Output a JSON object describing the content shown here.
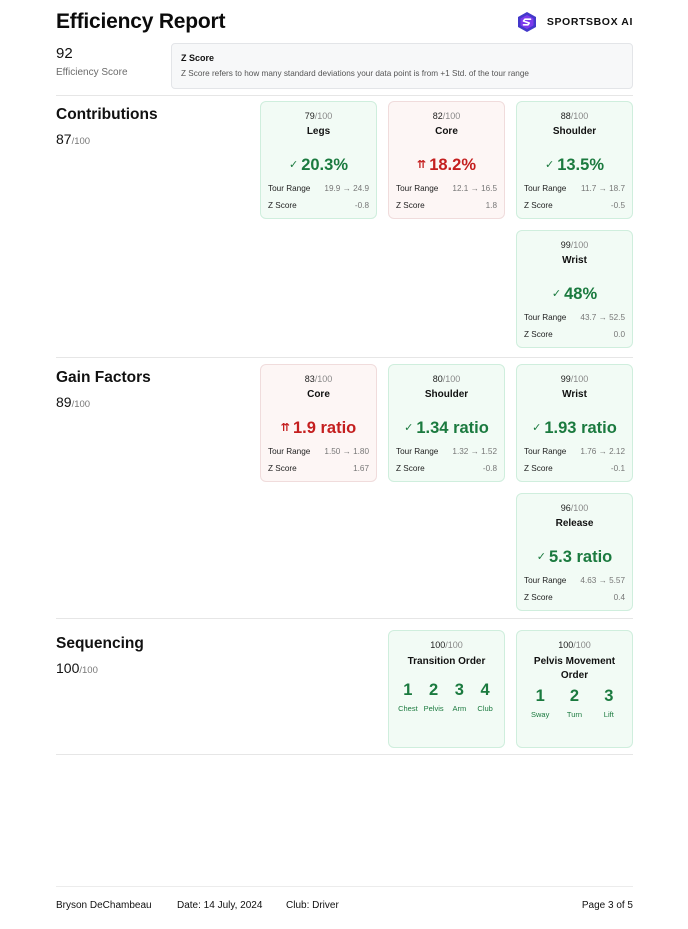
{
  "header": {
    "title": "Efficiency Report",
    "brand": "SPORTSBOX AI",
    "brand_icon": "sportsbox-logo-icon"
  },
  "summary": {
    "efficiency_score": "92",
    "efficiency_label": "Efficiency Score",
    "zscore_title": "Z Score",
    "zscore_desc": "Z Score refers to how many standard deviations your data point is from +1 Std. of the tour range"
  },
  "colors": {
    "good": "#1b7a3f",
    "bad": "#c41f1f",
    "good_bg": "#f2fbf5",
    "bad_bg": "#fdf6f5"
  },
  "contributions": {
    "title": "Contributions",
    "score": "87",
    "den": "/100",
    "cards": [
      {
        "score": "79",
        "den": "/100",
        "name": "Legs",
        "mark": "✓",
        "value": "20.3%",
        "status": "good",
        "range_label": "Tour Range",
        "range": "19.9 → 24.9",
        "z_label": "Z Score",
        "z": "-0.8"
      },
      {
        "score": "82",
        "den": "/100",
        "name": "Core",
        "mark": "⇈",
        "value": "18.2%",
        "status": "bad",
        "range_label": "Tour Range",
        "range": "12.1 → 16.5",
        "z_label": "Z Score",
        "z": "1.8"
      },
      {
        "score": "88",
        "den": "/100",
        "name": "Shoulder",
        "mark": "✓",
        "value": "13.5%",
        "status": "good",
        "range_label": "Tour Range",
        "range": "11.7 → 18.7",
        "z_label": "Z Score",
        "z": "-0.5"
      },
      {
        "score": "99",
        "den": "/100",
        "name": "Wrist",
        "mark": "✓",
        "value": "48%",
        "status": "good",
        "range_label": "Tour Range",
        "range": "43.7 → 52.5",
        "z_label": "Z Score",
        "z": "0.0"
      }
    ]
  },
  "gain_factors": {
    "title": "Gain Factors",
    "score": "89",
    "den": "/100",
    "cards": [
      {
        "score": "83",
        "den": "/100",
        "name": "Core",
        "mark": "⇈",
        "value": "1.9 ratio",
        "status": "bad",
        "range_label": "Tour Range",
        "range": "1.50 → 1.80",
        "z_label": "Z Score",
        "z": "1.67"
      },
      {
        "score": "80",
        "den": "/100",
        "name": "Shoulder",
        "mark": "✓",
        "value": "1.34 ratio",
        "status": "good",
        "range_label": "Tour Range",
        "range": "1.32 → 1.52",
        "z_label": "Z Score",
        "z": "-0.8"
      },
      {
        "score": "99",
        "den": "/100",
        "name": "Wrist",
        "mark": "✓",
        "value": "1.93 ratio",
        "status": "good",
        "range_label": "Tour Range",
        "range": "1.76 → 2.12",
        "z_label": "Z Score",
        "z": "-0.1"
      },
      {
        "score": "96",
        "den": "/100",
        "name": "Release",
        "mark": "✓",
        "value": "5.3 ratio",
        "status": "good",
        "range_label": "Tour Range",
        "range": "4.63 → 5.57",
        "z_label": "Z Score",
        "z": "0.4"
      }
    ]
  },
  "sequencing": {
    "title": "Sequencing",
    "score": "100",
    "den": "/100",
    "cards": [
      {
        "score": "100",
        "den": "/100",
        "name": "Transition Order",
        "items": [
          {
            "num": "1",
            "label": "Chest"
          },
          {
            "num": "2",
            "label": "Pelvis"
          },
          {
            "num": "3",
            "label": "Arm"
          },
          {
            "num": "4",
            "label": "Club"
          }
        ]
      },
      {
        "score": "100",
        "den": "/100",
        "name": "Pelvis Movement Order",
        "items": [
          {
            "num": "1",
            "label": "Sway"
          },
          {
            "num": "2",
            "label": "Turn"
          },
          {
            "num": "3",
            "label": "Lift"
          }
        ]
      }
    ]
  },
  "footer": {
    "player": "Bryson DeChambeau",
    "date": "Date: 14 July, 2024",
    "club": "Club: Driver",
    "page": "Page 3 of 5"
  }
}
